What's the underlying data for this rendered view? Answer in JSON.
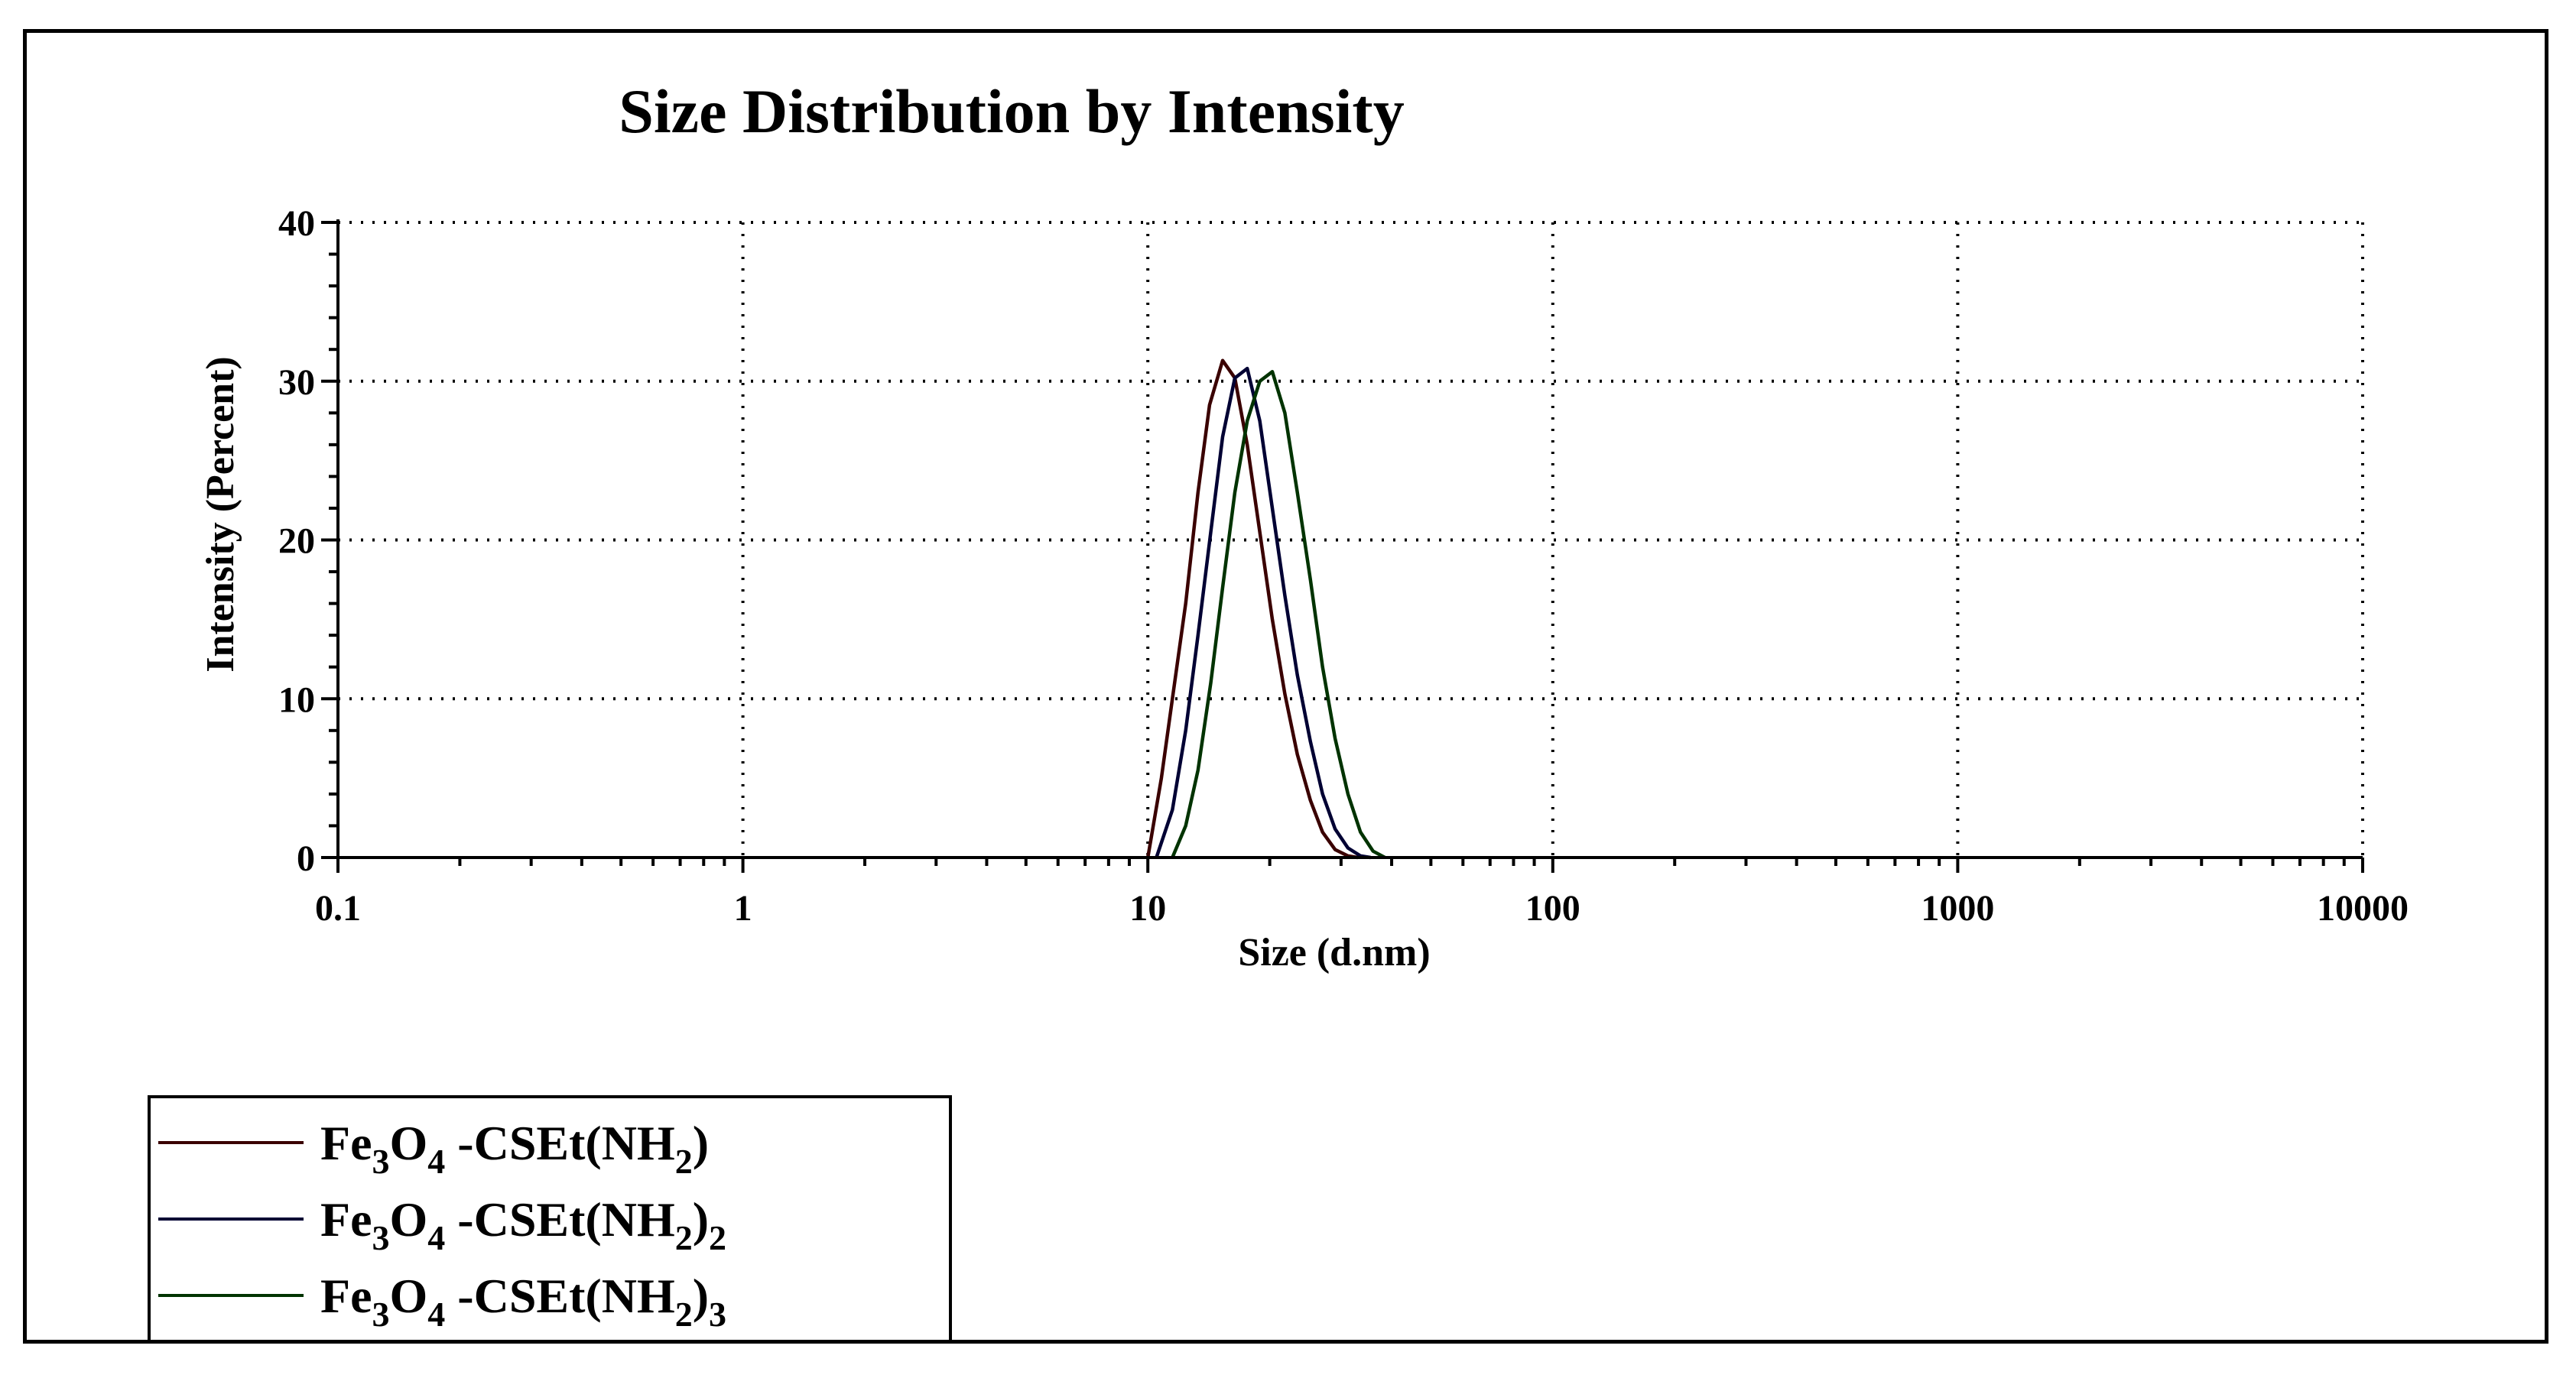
{
  "chart_data": {
    "type": "line",
    "title": "Size Distribution by Intensity",
    "xlabel": "Size (d.nm)",
    "ylabel": "Intensity (Percent)",
    "xscale": "log",
    "xlim": [
      0.1,
      10000
    ],
    "ylim": [
      0,
      40
    ],
    "xticks": [
      "0.1",
      "1",
      "10",
      "100",
      "1000",
      "10000"
    ],
    "xtick_values": [
      0.1,
      1,
      10,
      100,
      1000,
      10000
    ],
    "yticks": [
      "0",
      "10",
      "20",
      "30",
      "40"
    ],
    "ytick_values": [
      0,
      10,
      20,
      30,
      40
    ],
    "grid": true,
    "legend_position": "bottom-left",
    "series": [
      {
        "name": "Fe3O4 -CSEt(NH2)",
        "color": "#3a0000",
        "x": [
          10.0,
          10.8,
          11.5,
          12.4,
          13.3,
          14.2,
          15.3,
          16.4,
          17.6,
          18.9,
          20.3,
          21.8,
          23.4,
          25.2,
          27.0,
          29.0,
          31.2,
          33.0
        ],
        "y": [
          0,
          5,
          10,
          16,
          23,
          28.5,
          31.3,
          30.2,
          26,
          20.5,
          15,
          10.3,
          6.5,
          3.6,
          1.6,
          0.5,
          0.1,
          0
        ]
      },
      {
        "name": "Fe3O4 -CSEt(NH2)2",
        "color": "#000033",
        "x": [
          10.5,
          11.5,
          12.4,
          13.3,
          14.3,
          15.3,
          16.4,
          17.6,
          18.9,
          20.3,
          21.8,
          23.4,
          25.2,
          27.0,
          29.0,
          31.2,
          33.5,
          35.5
        ],
        "y": [
          0,
          3,
          8,
          14,
          20.5,
          26.5,
          30.2,
          30.8,
          27.5,
          22,
          16.5,
          11.5,
          7.3,
          4,
          1.8,
          0.6,
          0.1,
          0
        ]
      },
      {
        "name": "Fe3O4 -CSEt(NH2)3",
        "color": "#003300",
        "x": [
          11.5,
          12.4,
          13.3,
          14.3,
          15.3,
          16.4,
          17.6,
          18.9,
          20.3,
          21.8,
          23.4,
          25.2,
          27.0,
          29.0,
          31.2,
          33.5,
          36.0,
          38.5
        ],
        "y": [
          0,
          2,
          5.5,
          11,
          17,
          23,
          27.5,
          30,
          30.6,
          28,
          23,
          17.5,
          12,
          7.5,
          4,
          1.6,
          0.4,
          0
        ]
      }
    ]
  },
  "legend": {
    "items": [
      {
        "base": "Fe",
        "s1": "3",
        "mid": "O",
        "s2": "4",
        "rest": " -CSEt(NH",
        "s3": "2",
        "close": ")",
        "s4": "",
        "color": "#3a0000"
      },
      {
        "base": "Fe",
        "s1": "3",
        "mid": "O",
        "s2": "4",
        "rest": " -CSEt(NH",
        "s3": "2",
        "close": ")",
        "s4": "2",
        "color": "#000033"
      },
      {
        "base": "Fe",
        "s1": "3",
        "mid": "O",
        "s2": "4",
        "rest": " -CSEt(NH",
        "s3": "2",
        "close": ")",
        "s4": "3",
        "color": "#003300"
      }
    ]
  }
}
